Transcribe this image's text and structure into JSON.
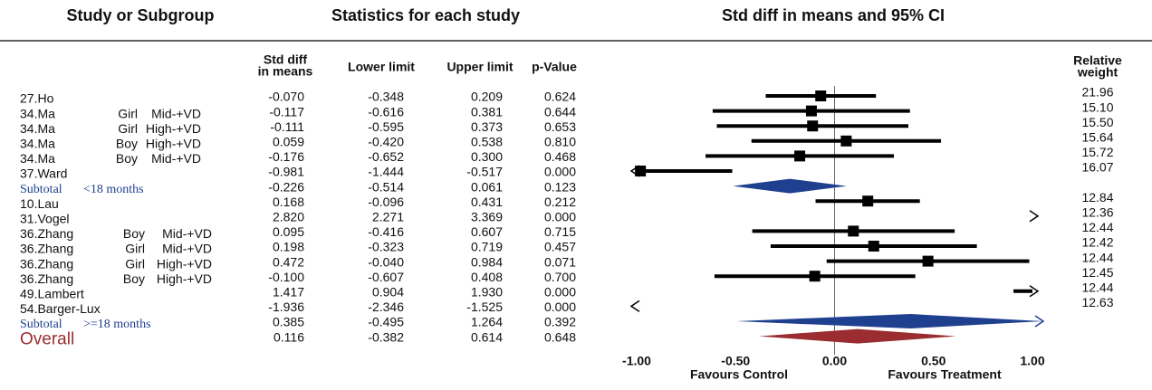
{
  "chart_data": {
    "type": "forest",
    "section_titles": [
      "Study or Subgroup",
      "Statistics for each study",
      "Std diff in means and 95% CI"
    ],
    "column_headers": {
      "estimate": [
        "Std diff",
        "in means"
      ],
      "lower": "Lower limit",
      "upper": "Upper limit",
      "p": "p-Value",
      "weight": [
        "Relative",
        "weight"
      ]
    },
    "xlim": [
      -1,
      1
    ],
    "xticks": [
      {
        "value": -1,
        "label": "-1.00"
      },
      {
        "value": -0.5,
        "label": "-0.50"
      },
      {
        "value": 0,
        "label": "0.00"
      },
      {
        "value": 0.5,
        "label": "0.50"
      },
      {
        "value": 1,
        "label": "1.00"
      }
    ],
    "xlabel_left": "Favours Control",
    "xlabel_right": "Favours Treatment",
    "study_color": "#000000",
    "subtotal_color": "#1f3f8f",
    "overall_color": "#9b2d30",
    "rows": [
      {
        "kind": "study",
        "study": "27.Ho",
        "estimate": {
          "value": -0.07,
          "label": "-0.070"
        },
        "lower": -0.348,
        "upper": 0.209,
        "p": "0.624",
        "weight": "21.96"
      },
      {
        "kind": "study",
        "study": "34.Ma",
        "sex": "Girl",
        "dose": "Mid-+VD",
        "estimate": -0.117,
        "lower": -0.616,
        "upper": 0.381,
        "p": "0.644",
        "weight": "15.10"
      },
      {
        "kind": "study",
        "study": "34.Ma",
        "sex": "Girl",
        "dose": "High-+VD",
        "estimate": -0.111,
        "lower": -0.595,
        "upper": 0.373,
        "p": "0.653",
        "weight": "15.50"
      },
      {
        "kind": "study",
        "study": "34.Ma",
        "sex": "Boy",
        "dose": "High-+VD",
        "estimate": 0.059,
        "lower": {
          "value": -0.42,
          "label": "-0.420"
        },
        "upper": 0.538,
        "p": "0.810",
        "weight": "15.64"
      },
      {
        "kind": "study",
        "study": "34.Ma",
        "sex": "Boy",
        "dose": "Mid-+VD",
        "estimate": -0.176,
        "lower": -0.652,
        "upper": {
          "value": 0.3,
          "label": "0.300"
        },
        "p": "0.468",
        "weight": "15.72"
      },
      {
        "kind": "study",
        "study": "37.Ward",
        "estimate": -0.981,
        "lower": -1.444,
        "upper": -0.517,
        "p": "0.000",
        "weight": "16.07"
      },
      {
        "kind": "subtotal",
        "study": "Subtotal",
        "group": "<18 months",
        "estimate": -0.226,
        "lower": -0.514,
        "upper": 0.061,
        "p": "0.123"
      },
      {
        "kind": "study",
        "study": "10.Lau",
        "estimate": 0.168,
        "lower": -0.096,
        "upper": 0.431,
        "p": "0.212",
        "weight": "12.84"
      },
      {
        "kind": "study",
        "study": "31.Vogel",
        "estimate": {
          "value": 2.82,
          "label": "2.820"
        },
        "lower": 2.271,
        "upper": 3.369,
        "p": "0.000",
        "weight": "12.36"
      },
      {
        "kind": "study",
        "study": "36.Zhang",
        "sex": "Boy",
        "dose": "Mid-+VD",
        "estimate": 0.095,
        "lower": -0.416,
        "upper": 0.607,
        "p": "0.715",
        "weight": "12.44"
      },
      {
        "kind": "study",
        "study": "36.Zhang",
        "sex": "Girl",
        "dose": "Mid-+VD",
        "estimate": 0.198,
        "lower": -0.323,
        "upper": 0.719,
        "p": "0.457",
        "weight": "12.42"
      },
      {
        "kind": "study",
        "study": "36.Zhang",
        "sex": "Girl",
        "dose": "High-+VD",
        "estimate": 0.472,
        "lower": {
          "value": -0.04,
          "label": "-0.040"
        },
        "upper": 0.984,
        "p": "0.071",
        "weight": "12.44"
      },
      {
        "kind": "study",
        "study": "36.Zhang",
        "sex": "Boy",
        "dose": "High-+VD",
        "estimate": {
          "value": -0.1,
          "label": "-0.100"
        },
        "lower": -0.607,
        "upper": 0.408,
        "p": "0.700",
        "weight": "12.45"
      },
      {
        "kind": "study",
        "study": "49.Lambert",
        "estimate": 1.417,
        "lower": 0.904,
        "upper": {
          "value": 1.93,
          "label": "1.930"
        },
        "p": "0.000",
        "weight": "12.44"
      },
      {
        "kind": "study",
        "study": "54.Barger-Lux",
        "estimate": -1.936,
        "lower": -2.346,
        "upper": -1.525,
        "p": "0.000",
        "weight": "12.63"
      },
      {
        "kind": "subtotal",
        "study": "Subtotal",
        "group": ">=18 months",
        "estimate": 0.385,
        "lower": -0.495,
        "upper": 1.264,
        "p": "0.392"
      },
      {
        "kind": "overall",
        "study": "Overall",
        "estimate": 0.116,
        "lower": -0.382,
        "upper": 0.614,
        "p": "0.648"
      }
    ]
  }
}
